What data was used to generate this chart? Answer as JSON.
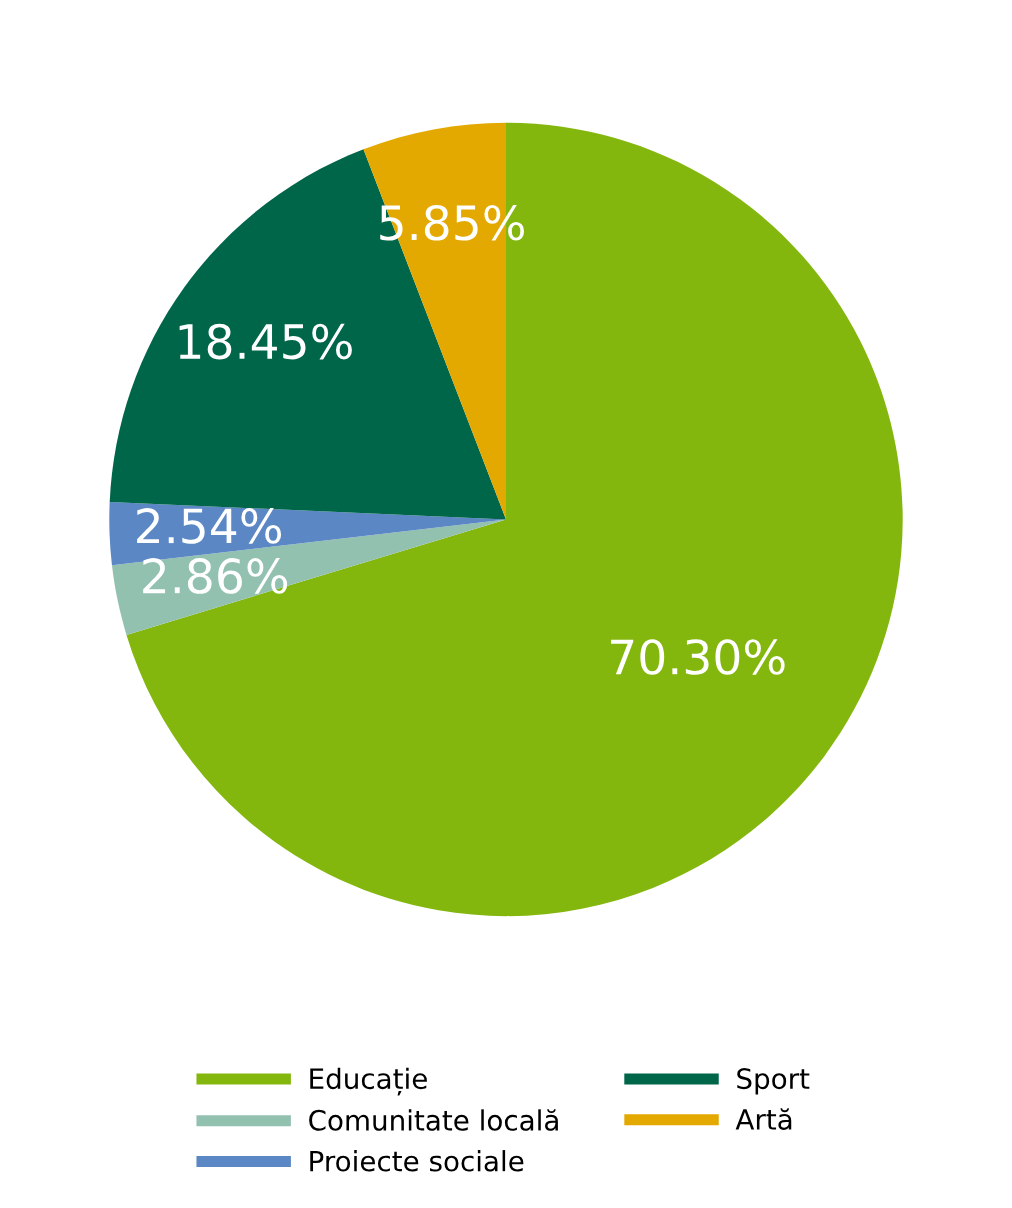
{
  "chart_data": {
    "type": "pie",
    "categories": [
      "Educație",
      "Comunitate locală",
      "Proiecte sociale",
      "Sport",
      "Artă"
    ],
    "values": [
      70.3,
      2.86,
      2.54,
      18.45,
      5.85
    ],
    "value_labels": [
      "70.30%",
      "2.86%",
      "2.54%",
      "18.45%",
      "5.85%"
    ],
    "colors": [
      "#84b70e",
      "#93c1b0",
      "#5b87c5",
      "#00664a",
      "#e3a900"
    ],
    "legend": "bottom"
  }
}
